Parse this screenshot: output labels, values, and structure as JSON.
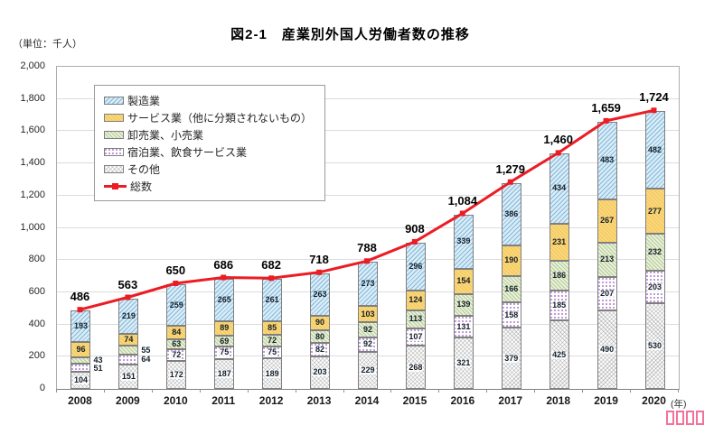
{
  "header": {
    "title": "図2-1　産業別外国人労働者数の推移",
    "unit_label": "（単位：千人）"
  },
  "x_axis": {
    "year_suffix": "(年)"
  },
  "watermark": {
    "glyph_count": 4,
    "color": "#f2729a"
  },
  "chart_data": {
    "type": "bar",
    "subtype": "stacked-bar-with-total-line",
    "title": "図2-1　産業別外国人労働者数の推移",
    "unit": "千人",
    "categories": [
      "2008",
      "2009",
      "2010",
      "2011",
      "2012",
      "2013",
      "2014",
      "2015",
      "2016",
      "2017",
      "2018",
      "2019",
      "2020"
    ],
    "series": [
      {
        "name": "製造業",
        "pattern": "manufacturing",
        "color": "#d9ecf8",
        "values": [
          193,
          219,
          259,
          265,
          261,
          263,
          273,
          296,
          339,
          386,
          434,
          483,
          482
        ]
      },
      {
        "name": "サービス業（他に分類されないもの）",
        "pattern": "services",
        "color": "#fbd778",
        "values": [
          96,
          74,
          84,
          89,
          85,
          90,
          103,
          124,
          154,
          190,
          231,
          267,
          277
        ]
      },
      {
        "name": "卸売業、小売業",
        "pattern": "wholesale",
        "color": "#e9f1db",
        "values": [
          43,
          55,
          63,
          69,
          72,
          80,
          92,
          113,
          139,
          166,
          186,
          213,
          232
        ]
      },
      {
        "name": "宿泊業、飲食サービス業",
        "pattern": "accommodation",
        "color": "#ffffff",
        "values": [
          51,
          64,
          72,
          75,
          75,
          82,
          92,
          107,
          131,
          158,
          185,
          207,
          203
        ]
      },
      {
        "name": "その他",
        "pattern": "other",
        "color": "#fcfcfc",
        "values": [
          104,
          151,
          172,
          187,
          189,
          203,
          229,
          268,
          321,
          379,
          425,
          490,
          530
        ]
      }
    ],
    "stack_order_bottom_to_top": [
      "その他",
      "宿泊業、飲食サービス業",
      "卸売業、小売業",
      "サービス業（他に分類されないもの）",
      "製造業"
    ],
    "totals_line": {
      "name": "総数",
      "color": "#ec1c24",
      "values": [
        486,
        563,
        650,
        686,
        682,
        718,
        788,
        908,
        1084,
        1279,
        1460,
        1659,
        1724
      ]
    },
    "ylim": [
      0,
      2000
    ],
    "ytick_step": 200,
    "grid": "horizontal",
    "legend_position": "upper-left-inside",
    "outside_value_labels": {
      "2008": [
        "卸売業、小売業",
        "宿泊業、飲食サービス業"
      ],
      "2009": [
        "卸売業、小売業",
        "宿泊業、飲食サービス業"
      ]
    }
  }
}
